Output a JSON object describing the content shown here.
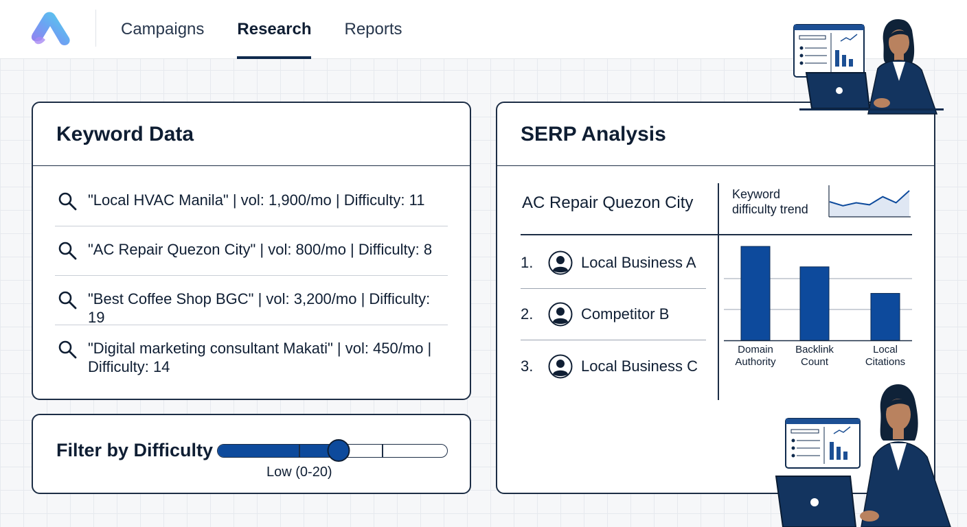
{
  "nav": {
    "tabs": [
      {
        "label": "Campaigns",
        "active": false
      },
      {
        "label": "Research",
        "active": true
      },
      {
        "label": "Reports",
        "active": false
      }
    ]
  },
  "keyword_card": {
    "title": "Keyword Data",
    "rows": [
      "\"Local HVAC Manila\" | vol: 1,900/mo | Difficulty: 11",
      "\"AC Repair Quezon City\" | vol: 800/mo | Difficulty: 8",
      "\"Best Coffee Shop BGC\" | vol: 3,200/mo | Difficulty: 19",
      "\"Digital marketing consultant Makati\" | vol: 450/mo | Difficulty: 14"
    ]
  },
  "filter_card": {
    "title": "Filter by Difficulty",
    "slider_value": 0.53,
    "caption": "Low (0-20)"
  },
  "serp_card": {
    "title": "SERP Analysis",
    "keyword": "AC Repair Quezon City",
    "trend_label_line1": "Keyword",
    "trend_label_line2": "difficulty trend",
    "results": [
      {
        "rank": "1.",
        "name": "Local Business A"
      },
      {
        "rank": "2.",
        "name": "Competitor B"
      },
      {
        "rank": "3.",
        "name": "Local Business C"
      }
    ]
  },
  "chart_data": [
    {
      "type": "line",
      "title": "Keyword difficulty trend",
      "values": [
        30,
        22,
        28,
        24,
        40,
        28,
        52
      ]
    },
    {
      "type": "bar",
      "categories": [
        "Domain Authority",
        "Backlink Count",
        "Local Citations"
      ],
      "values": [
        92,
        72,
        46
      ],
      "ylim": [
        0,
        100
      ],
      "grid": true
    }
  ],
  "colors": {
    "accent": "#0d4a9c",
    "border": "#1c2d45",
    "text": "#0f1e33"
  }
}
